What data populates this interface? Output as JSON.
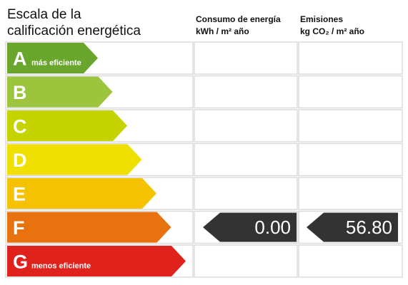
{
  "header": {
    "title_lines": [
      "Escala de la",
      "calificación energética"
    ],
    "consumption": [
      "Consumo de energía",
      "kWh / m² año"
    ],
    "emissions": [
      "Emisiones",
      "kg CO₂ / m² año"
    ]
  },
  "grades": [
    {
      "letter": "A",
      "note": "más eficiente",
      "color": "#6aa62c"
    },
    {
      "letter": "B",
      "color": "#9cc43c"
    },
    {
      "letter": "C",
      "color": "#c5d300"
    },
    {
      "letter": "D",
      "color": "#efe000"
    },
    {
      "letter": "E",
      "color": "#f4c200"
    },
    {
      "letter": "F",
      "color": "#e8730e",
      "consumption": "0.00",
      "emissions": "56.80"
    },
    {
      "letter": "G",
      "note": "menos eficiente",
      "color": "#e0221c"
    }
  ]
}
